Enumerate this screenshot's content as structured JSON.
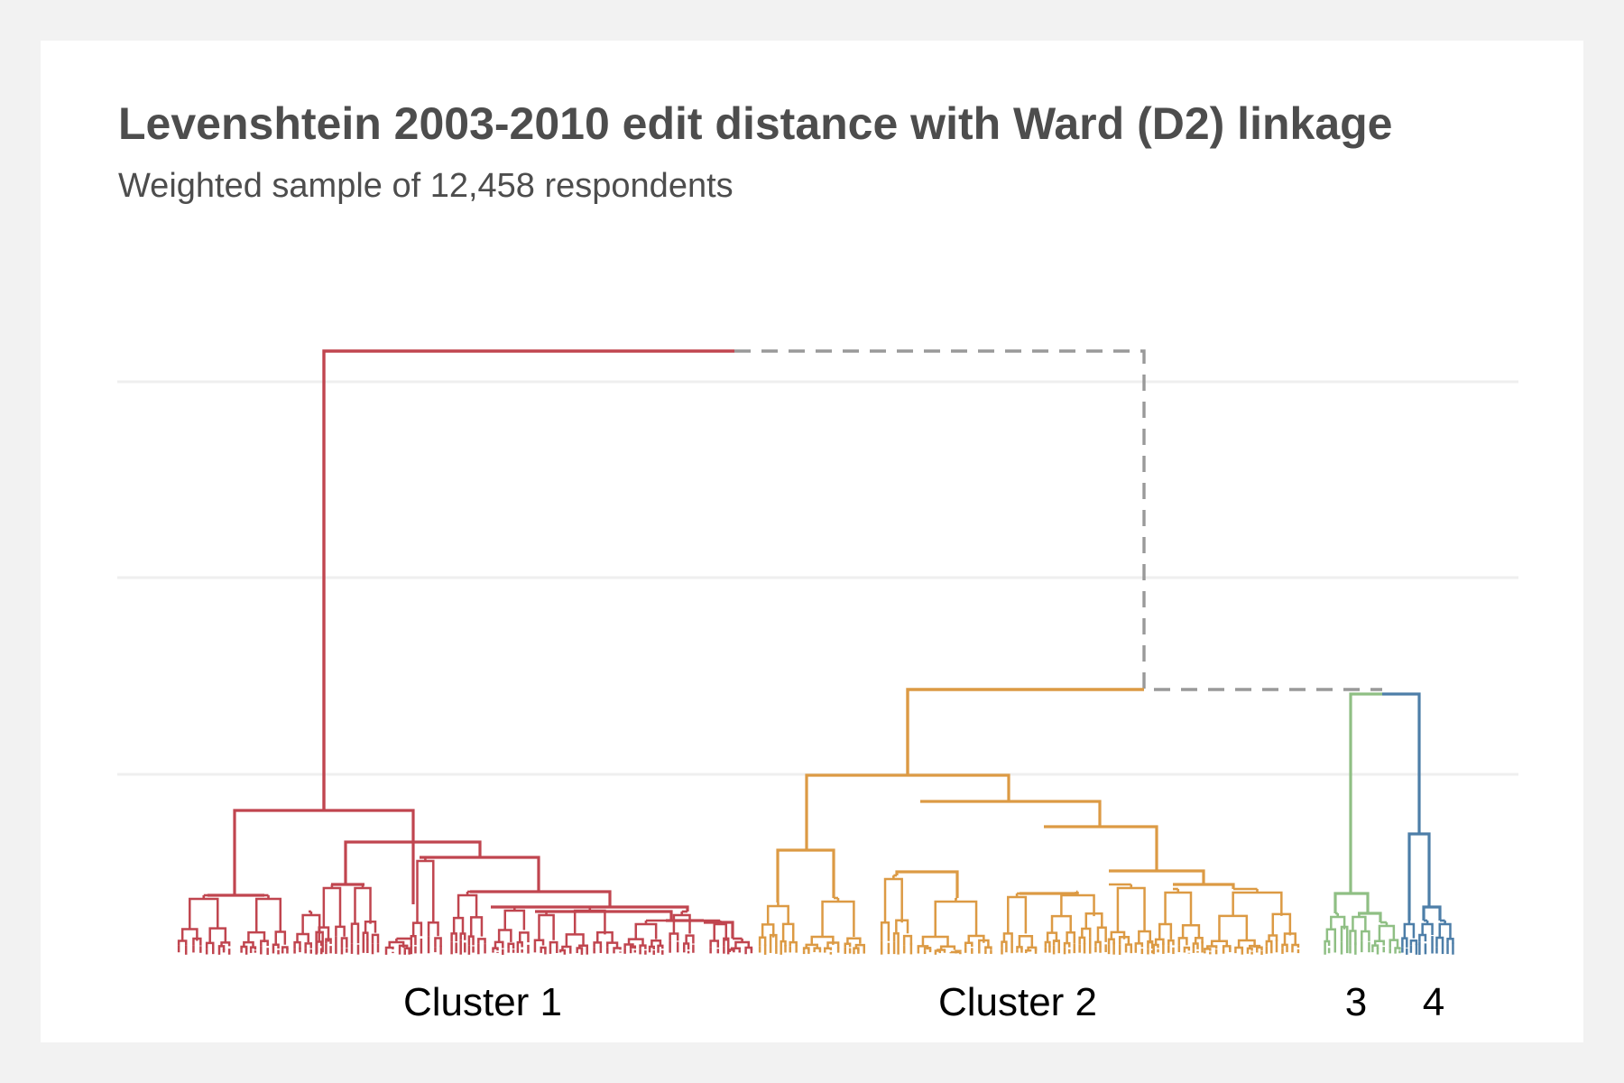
{
  "title": "Levenshtein 2003-2010 edit distance with Ward (D2) linkage",
  "subtitle": "Weighted sample of 12,458 respondents",
  "clusters": [
    {
      "label": "Cluster 1",
      "color": "#c0454f"
    },
    {
      "label": "Cluster 2",
      "color": "#dc9a44"
    },
    {
      "label": "3",
      "color": "#8fbf84"
    },
    {
      "label": "4",
      "color": "#4d7ea8"
    }
  ],
  "connector_color": "#999999",
  "grid_color": "#efefef"
}
